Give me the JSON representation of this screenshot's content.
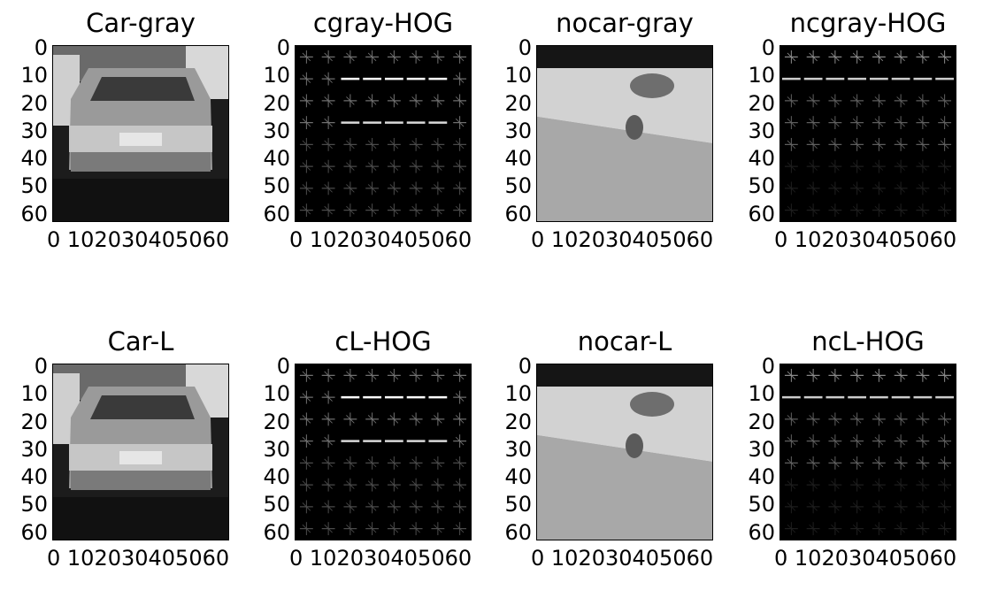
{
  "figure": {
    "panels": [
      {
        "id": "car-gray",
        "title": "Car-gray",
        "kind": "car-photo"
      },
      {
        "id": "cgray-hog",
        "title": "cgray-HOG",
        "kind": "hog-car"
      },
      {
        "id": "nocar-gray",
        "title": "nocar-gray",
        "kind": "nocar-photo"
      },
      {
        "id": "ncgray-hog",
        "title": "ncgray-HOG",
        "kind": "hog-nocar"
      },
      {
        "id": "car-l",
        "title": "Car-L",
        "kind": "car-photo"
      },
      {
        "id": "cl-hog",
        "title": "cL-HOG",
        "kind": "hog-car"
      },
      {
        "id": "nocar-l",
        "title": "nocar-L",
        "kind": "nocar-photo"
      },
      {
        "id": "ncl-hog",
        "title": "ncL-HOG",
        "kind": "hog-nocar"
      }
    ],
    "y_ticks": [
      "0",
      "10",
      "20",
      "30",
      "40",
      "50",
      "60"
    ],
    "x_ticks_label": "0 102030405060"
  }
}
